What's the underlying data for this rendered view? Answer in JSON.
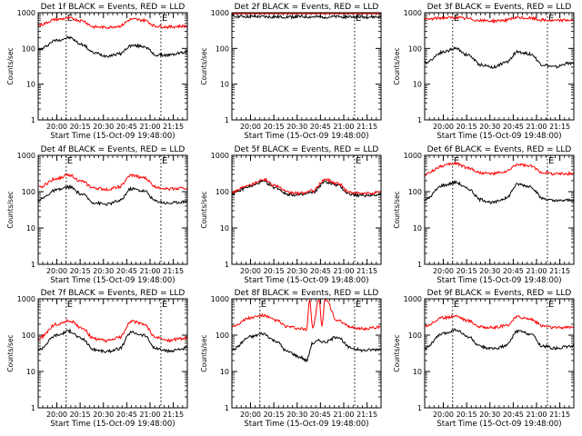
{
  "colors": {
    "background": "#ffffff",
    "events": "#000000",
    "lld": "#ff0000",
    "axes": "#000000"
  },
  "chart_data": [
    {
      "type": "line",
      "title": "Det 1f BLACK = Events, RED = LLD",
      "xlabel": "Start Time (15-Oct-09 19:48:00)",
      "ylabel": "Counts/sec",
      "xlim": [
        "19:48",
        "21:24"
      ],
      "ylim": [
        1,
        1000
      ],
      "yscale": "log",
      "xticks": [
        "20:00",
        "20:15",
        "20:30",
        "20:45",
        "21:00",
        "21:15"
      ],
      "yticks": [
        "1",
        "10",
        "100",
        "1000"
      ],
      "markers": [
        {
          "time": "20:06",
          "label": "E"
        },
        {
          "time": "21:07",
          "label": "E"
        }
      ],
      "grid": false,
      "series": [
        {
          "name": "BLACK = Events",
          "x": [
            "19:48",
            "20:00",
            "20:08",
            "20:16",
            "20:24",
            "20:32",
            "20:40",
            "20:48",
            "20:56",
            "21:04",
            "21:12",
            "21:20",
            "21:24"
          ],
          "y": [
            90,
            170,
            200,
            130,
            75,
            62,
            70,
            120,
            115,
            65,
            65,
            75,
            80
          ]
        },
        {
          "name": "RED = LLD",
          "x": [
            "19:48",
            "20:00",
            "20:08",
            "20:16",
            "20:24",
            "20:32",
            "20:40",
            "20:48",
            "20:56",
            "21:04",
            "21:12",
            "21:20",
            "21:24"
          ],
          "y": [
            450,
            650,
            700,
            600,
            400,
            390,
            420,
            650,
            620,
            420,
            400,
            420,
            430
          ]
        }
      ]
    },
    {
      "type": "line",
      "title": "Det 2f BLACK = Events, RED = LLD",
      "xlabel": "Start Time (15-Oct-09 19:48:00)",
      "ylabel": "Counts/sec",
      "xlim": [
        "19:48",
        "21:24"
      ],
      "ylim": [
        1,
        1000
      ],
      "yscale": "log",
      "xticks": [
        "20:00",
        "20:15",
        "20:30",
        "20:45",
        "21:00",
        "21:15"
      ],
      "yticks": [
        "1",
        "10",
        "100",
        "1000"
      ],
      "markers": [
        {
          "time": "21:07",
          "label": "E"
        }
      ],
      "grid": false,
      "series": [
        {
          "name": "BLACK = Events",
          "x": [
            "19:48",
            "20:00",
            "20:15",
            "20:30",
            "20:45",
            "21:00",
            "21:15",
            "21:24"
          ],
          "y": [
            800,
            780,
            760,
            770,
            760,
            770,
            760,
            760
          ]
        },
        {
          "name": "RED = LLD",
          "x": [
            "19:48",
            "20:00",
            "20:15",
            "20:30",
            "20:45",
            "21:00",
            "21:15",
            "21:24"
          ],
          "y": [
            1100,
            1100,
            1080,
            1090,
            1080,
            1080,
            1080,
            1070
          ]
        }
      ]
    },
    {
      "type": "line",
      "title": "Det 3f BLACK = Events, RED = LLD",
      "xlabel": "Start Time (15-Oct-09 19:48:00)",
      "ylabel": "Counts/sec",
      "xlim": [
        "19:48",
        "21:24"
      ],
      "ylim": [
        1,
        1000
      ],
      "yscale": "log",
      "xticks": [
        "20:00",
        "20:15",
        "20:30",
        "20:45",
        "21:00",
        "21:15"
      ],
      "yticks": [
        "1",
        "10",
        "100",
        "1000"
      ],
      "markers": [
        {
          "time": "20:06",
          "label": "E"
        },
        {
          "time": "21:07",
          "label": "E"
        }
      ],
      "grid": false,
      "series": [
        {
          "name": "BLACK = Events",
          "x": [
            "19:48",
            "20:00",
            "20:08",
            "20:16",
            "20:24",
            "20:32",
            "20:40",
            "20:48",
            "20:56",
            "21:04",
            "21:12",
            "21:20",
            "21:24"
          ],
          "y": [
            40,
            80,
            100,
            65,
            35,
            30,
            40,
            80,
            70,
            35,
            30,
            38,
            40
          ]
        },
        {
          "name": "RED = LLD",
          "x": [
            "19:48",
            "20:00",
            "20:08",
            "20:16",
            "20:24",
            "20:32",
            "20:40",
            "20:48",
            "20:56",
            "21:04",
            "21:12",
            "21:20",
            "21:24"
          ],
          "y": [
            650,
            720,
            730,
            680,
            600,
            590,
            620,
            720,
            700,
            620,
            600,
            620,
            620
          ]
        }
      ]
    },
    {
      "type": "line",
      "title": "Det 4f BLACK = Events, RED = LLD",
      "xlabel": "Start Time (15-Oct-09 19:48:00)",
      "ylabel": "Counts/sec",
      "xlim": [
        "19:48",
        "21:24"
      ],
      "ylim": [
        1,
        1000
      ],
      "yscale": "log",
      "xticks": [
        "20:00",
        "20:15",
        "20:30",
        "20:45",
        "21:00",
        "21:15"
      ],
      "yticks": [
        "1",
        "10",
        "100",
        "1000"
      ],
      "markers": [
        {
          "time": "20:06",
          "label": "E"
        },
        {
          "time": "21:07",
          "label": "E"
        }
      ],
      "grid": false,
      "series": [
        {
          "name": "BLACK = Events",
          "x": [
            "19:48",
            "20:00",
            "20:08",
            "20:16",
            "20:24",
            "20:32",
            "20:40",
            "20:48",
            "20:56",
            "21:04",
            "21:12",
            "21:20",
            "21:24"
          ],
          "y": [
            60,
            110,
            135,
            85,
            50,
            45,
            55,
            120,
            105,
            55,
            48,
            52,
            55
          ]
        },
        {
          "name": "RED = LLD",
          "x": [
            "19:48",
            "20:00",
            "20:08",
            "20:16",
            "20:24",
            "20:32",
            "20:40",
            "20:48",
            "20:56",
            "21:04",
            "21:12",
            "21:20",
            "21:24"
          ],
          "y": [
            130,
            230,
            290,
            190,
            125,
            115,
            135,
            280,
            240,
            135,
            120,
            125,
            125
          ]
        }
      ]
    },
    {
      "type": "line",
      "title": "Det 5f BLACK = Events, RED = LLD",
      "xlabel": "Start Time (15-Oct-09 19:48:00)",
      "ylabel": "Counts/sec",
      "xlim": [
        "19:48",
        "21:24"
      ],
      "ylim": [
        1,
        1000
      ],
      "yscale": "log",
      "xticks": [
        "20:00",
        "20:15",
        "20:30",
        "20:45",
        "21:00",
        "21:15"
      ],
      "yticks": [
        "1",
        "10",
        "100",
        "1000"
      ],
      "markers": [
        {
          "time": "21:07",
          "label": "E"
        }
      ],
      "grid": false,
      "series": [
        {
          "name": "BLACK = Events",
          "x": [
            "19:48",
            "20:00",
            "20:08",
            "20:16",
            "20:24",
            "20:32",
            "20:40",
            "20:48",
            "20:56",
            "21:04",
            "21:12",
            "21:20",
            "21:24"
          ],
          "y": [
            90,
            140,
            190,
            130,
            85,
            80,
            95,
            185,
            150,
            85,
            78,
            82,
            85
          ]
        },
        {
          "name": "RED = LLD",
          "x": [
            "19:48",
            "20:00",
            "20:08",
            "20:16",
            "20:24",
            "20:32",
            "20:40",
            "20:48",
            "20:56",
            "21:04",
            "21:12",
            "21:20",
            "21:24"
          ],
          "y": [
            100,
            160,
            220,
            150,
            95,
            90,
            105,
            215,
            170,
            95,
            88,
            92,
            95
          ]
        }
      ]
    },
    {
      "type": "line",
      "title": "Det 6f BLACK = Events, RED = LLD",
      "xlabel": "Start Time (15-Oct-09 19:48:00)",
      "ylabel": "Counts/sec",
      "xlim": [
        "19:48",
        "21:24"
      ],
      "ylim": [
        1,
        1000
      ],
      "yscale": "log",
      "xticks": [
        "20:00",
        "20:15",
        "20:30",
        "20:45",
        "21:00",
        "21:15"
      ],
      "yticks": [
        "1",
        "10",
        "100",
        "1000"
      ],
      "markers": [
        {
          "time": "20:06",
          "label": "E"
        },
        {
          "time": "21:07",
          "label": "E"
        }
      ],
      "grid": false,
      "series": [
        {
          "name": "BLACK = Events",
          "x": [
            "19:48",
            "20:00",
            "20:08",
            "20:16",
            "20:24",
            "20:32",
            "20:40",
            "20:48",
            "20:56",
            "21:04",
            "21:12",
            "21:20",
            "21:24"
          ],
          "y": [
            60,
            150,
            180,
            120,
            60,
            50,
            65,
            160,
            140,
            65,
            55,
            58,
            60
          ]
        },
        {
          "name": "RED = LLD",
          "x": [
            "19:48",
            "20:00",
            "20:08",
            "20:16",
            "20:24",
            "20:32",
            "20:40",
            "20:48",
            "20:56",
            "21:04",
            "21:12",
            "21:20",
            "21:24"
          ],
          "y": [
            300,
            520,
            600,
            450,
            330,
            310,
            350,
            560,
            500,
            340,
            310,
            315,
            320
          ]
        }
      ]
    },
    {
      "type": "line",
      "title": "Det 7f BLACK = Events, RED = LLD",
      "xlabel": "Start Time (15-Oct-09 19:48:00)",
      "ylabel": "Counts/sec",
      "xlim": [
        "19:48",
        "21:24"
      ],
      "ylim": [
        1,
        1000
      ],
      "yscale": "log",
      "xticks": [
        "20:00",
        "20:15",
        "20:30",
        "20:45",
        "21:00",
        "21:15"
      ],
      "yticks": [
        "1",
        "10",
        "100",
        "1000"
      ],
      "markers": [
        {
          "time": "20:06",
          "label": "E"
        },
        {
          "time": "21:07",
          "label": "E"
        }
      ],
      "grid": false,
      "series": [
        {
          "name": "BLACK = Events",
          "x": [
            "19:48",
            "20:00",
            "20:08",
            "20:16",
            "20:24",
            "20:32",
            "20:40",
            "20:48",
            "20:56",
            "21:04",
            "21:12",
            "21:20",
            "21:24"
          ],
          "y": [
            40,
            100,
            130,
            80,
            40,
            35,
            42,
            120,
            100,
            42,
            36,
            42,
            45
          ]
        },
        {
          "name": "RED = LLD",
          "x": [
            "19:48",
            "20:00",
            "20:08",
            "20:16",
            "20:24",
            "20:32",
            "20:40",
            "20:48",
            "20:56",
            "21:04",
            "21:12",
            "21:20",
            "21:24"
          ],
          "y": [
            80,
            200,
            250,
            160,
            80,
            70,
            85,
            240,
            200,
            85,
            72,
            80,
            85
          ]
        }
      ]
    },
    {
      "type": "line",
      "title": "Det 8f BLACK = Events, RED = LLD",
      "xlabel": "Start Time (15-Oct-09 19:48:00)",
      "ylabel": "Counts/sec",
      "xlim": [
        "19:48",
        "21:24"
      ],
      "ylim": [
        1,
        1000
      ],
      "yscale": "log",
      "xticks": [
        "20:00",
        "20:15",
        "20:30",
        "20:45",
        "21:00",
        "21:15"
      ],
      "yticks": [
        "1",
        "10",
        "100",
        "1000"
      ],
      "markers": [
        {
          "time": "20:06",
          "label": "E"
        },
        {
          "time": "21:07",
          "label": "E"
        }
      ],
      "grid": false,
      "series": [
        {
          "name": "BLACK = Events",
          "x": [
            "19:48",
            "20:00",
            "20:08",
            "20:16",
            "20:24",
            "20:32",
            "20:36",
            "20:40",
            "20:44",
            "20:48",
            "20:56",
            "21:04",
            "21:12",
            "21:20",
            "21:24"
          ],
          "y": [
            40,
            90,
            110,
            70,
            35,
            25,
            20,
            60,
            70,
            65,
            90,
            45,
            38,
            40,
            42
          ]
        },
        {
          "name": "RED = LLD",
          "x": [
            "19:48",
            "20:00",
            "20:08",
            "20:16",
            "20:24",
            "20:32",
            "20:36",
            "20:38",
            "20:40",
            "20:44",
            "20:46",
            "20:48",
            "20:56",
            "21:04",
            "21:12",
            "21:20",
            "21:24"
          ],
          "y": [
            180,
            300,
            350,
            260,
            170,
            150,
            140,
            1000,
            160,
            1000,
            180,
            1000,
            250,
            170,
            150,
            160,
            170
          ]
        }
      ]
    },
    {
      "type": "line",
      "title": "Det 9f BLACK = Events, RED = LLD",
      "xlabel": "Start Time (15-Oct-09 19:48:00)",
      "ylabel": "Counts/sec",
      "xlim": [
        "19:48",
        "21:24"
      ],
      "ylim": [
        1,
        1000
      ],
      "yscale": "log",
      "xticks": [
        "20:00",
        "20:15",
        "20:30",
        "20:45",
        "21:00",
        "21:15"
      ],
      "yticks": [
        "1",
        "10",
        "100",
        "1000"
      ],
      "markers": [
        {
          "time": "20:06",
          "label": "E"
        },
        {
          "time": "21:07",
          "label": "E"
        }
      ],
      "grid": false,
      "series": [
        {
          "name": "BLACK = Events",
          "x": [
            "19:48",
            "20:00",
            "20:08",
            "20:16",
            "20:24",
            "20:32",
            "20:40",
            "20:48",
            "20:56",
            "21:04",
            "21:12",
            "21:20",
            "21:24"
          ],
          "y": [
            45,
            110,
            140,
            90,
            48,
            42,
            50,
            130,
            110,
            50,
            44,
            48,
            50
          ]
        },
        {
          "name": "RED = LLD",
          "x": [
            "19:48",
            "20:00",
            "20:08",
            "20:16",
            "20:24",
            "20:32",
            "20:40",
            "20:48",
            "20:56",
            "21:04",
            "21:12",
            "21:20",
            "21:24"
          ],
          "y": [
            180,
            300,
            340,
            250,
            170,
            160,
            180,
            320,
            280,
            180,
            160,
            165,
            170
          ]
        }
      ]
    }
  ]
}
